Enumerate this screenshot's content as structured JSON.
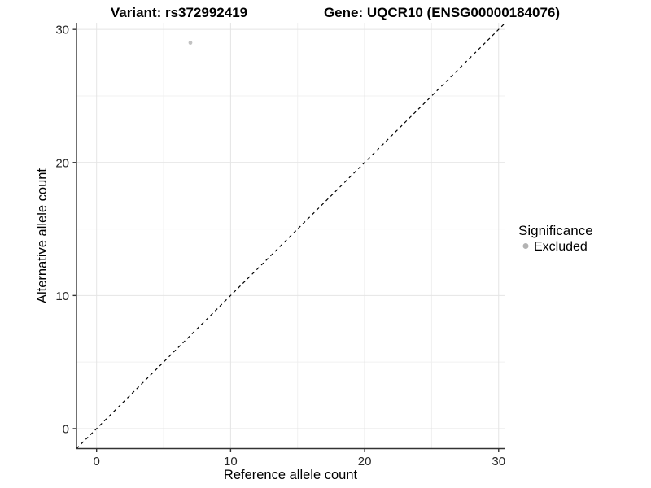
{
  "titles": {
    "left": "Variant: rs372992419",
    "right": "Gene: UQCR10 (ENSG00000184076)"
  },
  "legend": {
    "title": "Significance",
    "items": [
      {
        "label": "Excluded",
        "color": "#b3b3b3"
      }
    ]
  },
  "colors": {
    "background": "#ffffff",
    "grid_major": "#e4e4e4",
    "grid_minor": "#f0f0f0",
    "axis_line": "#333333",
    "tick_text": "#262626",
    "point": "#c2c2c2",
    "identity_line": "#000000"
  },
  "chart_data": {
    "type": "scatter",
    "title": "Variant: rs372992419  /  Gene: UQCR10 (ENSG00000184076)",
    "xlabel": "Reference allele count",
    "ylabel": "Alternative allele count",
    "xlim": [
      -1.5,
      30.5
    ],
    "ylim": [
      -1.5,
      30.5
    ],
    "x_ticks": [
      0,
      10,
      20,
      30
    ],
    "y_ticks": [
      0,
      10,
      20,
      30
    ],
    "x_minor_ticks": [
      5,
      15,
      25
    ],
    "y_minor_ticks": [
      5,
      15,
      25
    ],
    "grid": true,
    "legend_position": "right",
    "series": [
      {
        "name": "Excluded",
        "color": "#c2c2c2",
        "point_radius": 2.4,
        "points": [
          {
            "x": 7,
            "y": 29
          }
        ]
      }
    ],
    "reference_line": {
      "type": "identity",
      "from": [
        -1.5,
        -1.5
      ],
      "to": [
        30.5,
        30.5
      ],
      "style": "dashed",
      "color": "#000000"
    }
  }
}
